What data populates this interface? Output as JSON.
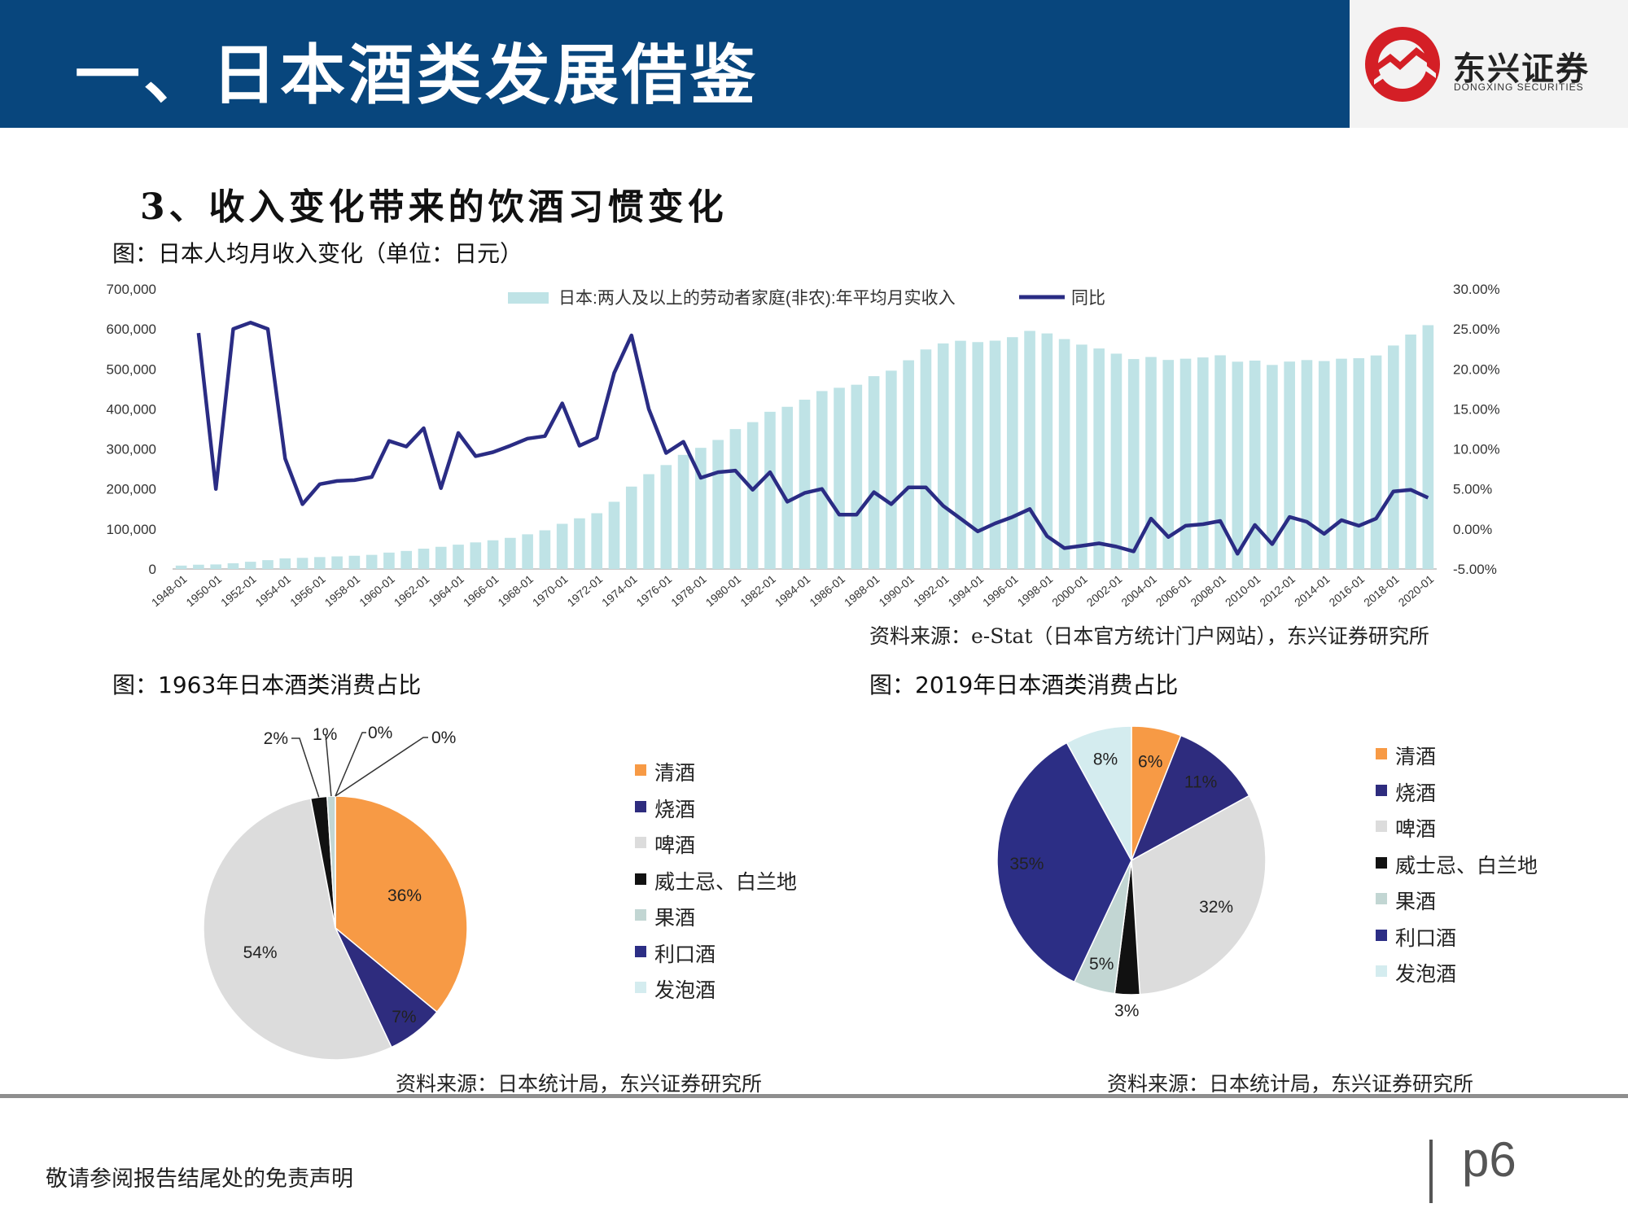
{
  "header": {
    "title": "一、日本酒类发展借鉴",
    "logo_name": "东兴证券",
    "logo_sub": "DONGXING SECURITIES"
  },
  "section_title": "3、收入变化带来的饮酒习惯变化",
  "footer": {
    "disclaimer": "敬请参阅报告结尾处的免责声明",
    "page": "p6"
  },
  "colors": {
    "banner": "#08467d",
    "bar": "#bfe3e6",
    "line": "#2a2c84",
    "sake": "#f79a45",
    "shochu": "#2e2c7e",
    "beer": "#dcdcdc",
    "whisky": "#111111",
    "fruit_wine": "#c2d6d3",
    "liqueur": "#2c2e85",
    "happoshu": "#d4ecef"
  },
  "chart_data": [
    {
      "type": "bar+line",
      "title": "图：日本人均月收入变化（单位：日元）",
      "source": "资料来源：e-Stat（日本官方统计门户网站），东兴证券研究所",
      "legend_bar": "日本:两人及以上的劳动者家庭(非农):年平均月实收入",
      "legend_line": "同比",
      "x": [
        1948,
        1949,
        1950,
        1951,
        1952,
        1953,
        1954,
        1955,
        1956,
        1957,
        1958,
        1959,
        1960,
        1961,
        1962,
        1963,
        1964,
        1965,
        1966,
        1967,
        1968,
        1969,
        1970,
        1971,
        1972,
        1973,
        1974,
        1975,
        1976,
        1977,
        1978,
        1979,
        1980,
        1981,
        1982,
        1983,
        1984,
        1985,
        1986,
        1987,
        1988,
        1989,
        1990,
        1991,
        1992,
        1993,
        1994,
        1995,
        1996,
        1997,
        1998,
        1999,
        2000,
        2001,
        2002,
        2003,
        2004,
        2005,
        2006,
        2007,
        2008,
        2009,
        2010,
        2011,
        2012,
        2013,
        2014,
        2015,
        2016,
        2017,
        2018,
        2019,
        2020
      ],
      "xticks": [
        "1948-01",
        "1950-01",
        "1952-01",
        "1954-01",
        "1956-01",
        "1958-01",
        "1960-01",
        "1962-01",
        "1964-01",
        "1966-01",
        "1968-01",
        "1970-01",
        "1972-01",
        "1974-01",
        "1976-01",
        "1978-01",
        "1980-01",
        "1982-01",
        "1984-01",
        "1986-01",
        "1988-01",
        "1990-01",
        "1992-01",
        "1994-01",
        "1996-01",
        "1998-01",
        "2000-01",
        "2002-01",
        "2004-01",
        "2006-01",
        "2008-01",
        "2010-01",
        "2012-01",
        "2014-01",
        "2016-01",
        "2018-01",
        "2020-01"
      ],
      "income": [
        8500,
        10700,
        11400,
        14300,
        18100,
        22100,
        26500,
        27800,
        29800,
        31500,
        33100,
        35300,
        41000,
        45100,
        50800,
        55500,
        60800,
        66500,
        71700,
        77800,
        86700,
        96700,
        112900,
        126700,
        139400,
        168000,
        206000,
        237000,
        259800,
        285200,
        302900,
        322600,
        349700,
        367100,
        393000,
        405500,
        423200,
        444800,
        453000,
        460600,
        482000,
        495800,
        521800,
        548800,
        563900,
        570500,
        567200,
        570800,
        579500,
        595200,
        588900,
        574700,
        560900,
        551200,
        538300,
        524800,
        530000,
        522600,
        525700,
        528800,
        534200,
        518200,
        521000,
        510100,
        518500,
        522300,
        519800,
        525700,
        526900,
        533800,
        558700,
        586100,
        609500
      ],
      "yoy": [
        24.5,
        5.0,
        25.0,
        25.8,
        25.0,
        8.8,
        3.1,
        5.6,
        6.0,
        6.1,
        6.5,
        11.0,
        10.3,
        12.6,
        5.1,
        12.0,
        9.1,
        9.6,
        10.4,
        11.3,
        11.6,
        15.7,
        10.4,
        11.4,
        19.5,
        24.2,
        15.0,
        9.5,
        10.9,
        6.4,
        7.1,
        7.3,
        4.9,
        7.1,
        3.4,
        4.5,
        5.0,
        1.8,
        1.8,
        4.6,
        3.1,
        5.2,
        5.2,
        2.9,
        1.3,
        -0.3,
        0.7,
        1.5,
        2.5,
        -0.9,
        -2.4,
        -2.1,
        -1.8,
        -2.2,
        -2.8,
        1.3,
        -1.0,
        0.4,
        0.6,
        1.0,
        -3.1,
        0.5,
        -1.9,
        1.5,
        0.9,
        -0.6,
        1.1,
        0.4,
        1.3,
        4.7,
        4.9,
        3.9
      ],
      "y_left": {
        "min": 0,
        "max": 700000,
        "ticks": [
          "0",
          "100,000",
          "200,000",
          "300,000",
          "400,000",
          "500,000",
          "600,000",
          "700,000"
        ]
      },
      "y_right": {
        "min": -5,
        "max": 30,
        "ticks": [
          "-5.00%",
          "0.00%",
          "5.00%",
          "10.00%",
          "15.00%",
          "20.00%",
          "25.00%",
          "30.00%"
        ]
      }
    },
    {
      "type": "pie",
      "title": "图：1963年日本酒类消费占比",
      "source": "资料来源：日本统计局，东兴证券研究所",
      "labels": [
        "清酒",
        "烧酒",
        "啤酒",
        "威士忌、白兰地",
        "果酒",
        "利口酒",
        "发泡酒"
      ],
      "values": [
        36,
        7,
        54,
        2,
        1,
        0,
        0
      ],
      "value_labels": [
        "36%",
        "7%",
        "54%",
        "2%",
        "1%",
        "0%",
        "0%"
      ]
    },
    {
      "type": "pie",
      "title": "图：2019年日本酒类消费占比",
      "source": "资料来源：日本统计局，东兴证券研究所",
      "labels": [
        "清酒",
        "烧酒",
        "啤酒",
        "威士忌、白兰地",
        "果酒",
        "利口酒",
        "发泡酒"
      ],
      "values": [
        6,
        11,
        32,
        3,
        5,
        35,
        8
      ],
      "value_labels": [
        "6%",
        "11%",
        "32%",
        "3%",
        "5%",
        "35%",
        "8%"
      ]
    }
  ]
}
